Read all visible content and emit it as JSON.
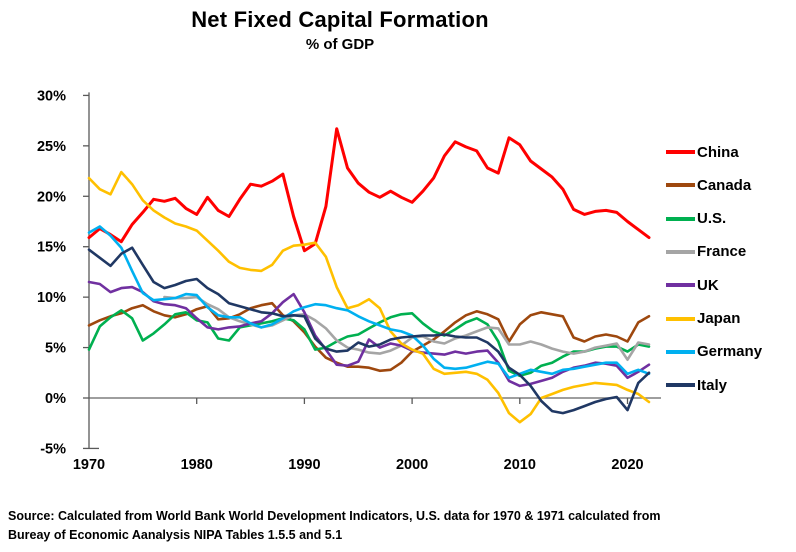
{
  "page_title": "Net Fixed Capital Formation chart",
  "chart_data": {
    "type": "line",
    "title": "Net Fixed Capital Formation",
    "subtitle": "% of GDP",
    "xlabel": "",
    "ylabel": "",
    "x_range": [
      1970,
      2022
    ],
    "x_tick_labels": [
      "1970",
      "1980",
      "1990",
      "2000",
      "2010",
      "2020"
    ],
    "x_ticks": [
      1970,
      1980,
      1990,
      2000,
      2010,
      2020
    ],
    "ylim": [
      -5,
      30
    ],
    "y_ticks": [
      30,
      25,
      20,
      15,
      10,
      5,
      0,
      -5
    ],
    "y_tick_suffix": "%",
    "grid": "none",
    "zero_line": true,
    "legend_position": "right",
    "series": [
      {
        "name": "China",
        "color": "#FF0000",
        "start_year": 1970,
        "values": [
          15.9,
          16.8,
          16.2,
          15.5,
          17.2,
          18.4,
          19.7,
          19.5,
          19.8,
          18.8,
          18.2,
          19.9,
          18.6,
          18.0,
          19.7,
          21.2,
          21.0,
          21.5,
          22.2,
          18.0,
          14.6,
          15.3,
          19.0,
          26.7,
          22.8,
          21.3,
          20.4,
          19.9,
          20.5,
          19.9,
          19.4,
          20.5,
          21.8,
          24.0,
          25.4,
          24.9,
          24.5,
          22.8,
          22.3,
          25.8,
          25.1,
          23.5,
          22.7,
          21.9,
          20.7,
          18.7,
          18.2,
          18.5,
          18.6,
          18.4,
          17.5,
          16.7,
          15.9
        ]
      },
      {
        "name": "Canada",
        "color": "#9E480E",
        "start_year": 1970,
        "values": [
          7.2,
          7.7,
          8.1,
          8.4,
          8.9,
          9.2,
          8.6,
          8.2,
          8.0,
          8.3,
          8.8,
          9.1,
          7.8,
          7.9,
          8.3,
          8.9,
          9.2,
          9.4,
          8.2,
          7.6,
          6.5,
          5.1,
          4.0,
          3.5,
          3.1,
          3.1,
          3.0,
          2.7,
          2.8,
          3.5,
          4.6,
          5.2,
          5.8,
          6.6,
          7.5,
          8.2,
          8.6,
          8.3,
          7.8,
          5.6,
          7.3,
          8.2,
          8.5,
          8.3,
          8.1,
          6.0,
          5.6,
          6.1,
          6.3,
          6.1,
          5.6,
          7.5,
          8.1
        ]
      },
      {
        "name": "U.S.",
        "color": "#00B050",
        "start_year": 1970,
        "values": [
          4.8,
          7.1,
          8.0,
          8.7,
          7.9,
          5.7,
          6.4,
          7.3,
          8.3,
          8.5,
          7.7,
          7.5,
          5.9,
          5.7,
          7.0,
          7.2,
          7.4,
          7.6,
          7.9,
          7.7,
          6.8,
          4.8,
          5.0,
          5.6,
          6.1,
          6.3,
          6.9,
          7.5,
          8.0,
          8.3,
          8.4,
          7.4,
          6.6,
          6.2,
          6.8,
          7.5,
          7.9,
          7.3,
          5.6,
          2.7,
          2.2,
          2.5,
          3.2,
          3.5,
          4.1,
          4.6,
          4.6,
          4.9,
          5.1,
          5.1,
          4.6,
          5.3,
          5.1
        ]
      },
      {
        "name": "France",
        "color": "#A5A5A5",
        "start_year": 1977,
        "values": [
          10.0,
          9.9,
          9.9,
          10.0,
          9.3,
          8.8,
          8.0,
          7.6,
          7.3,
          7.0,
          7.2,
          7.7,
          8.2,
          8.3,
          7.7,
          6.9,
          5.7,
          5.0,
          4.8,
          4.5,
          4.4,
          4.7,
          5.2,
          6.0,
          6.1,
          5.6,
          5.4,
          5.9,
          6.2,
          6.6,
          7.0,
          6.9,
          5.3,
          5.3,
          5.6,
          5.3,
          4.9,
          4.6,
          4.4,
          4.6,
          5.0,
          5.2,
          5.4,
          3.8,
          5.5,
          5.3
        ]
      },
      {
        "name": "UK",
        "color": "#7030A0",
        "start_year": 1970,
        "values": [
          11.5,
          11.3,
          10.5,
          10.9,
          11.0,
          10.5,
          9.6,
          9.3,
          9.2,
          8.9,
          7.9,
          7.0,
          6.8,
          7.0,
          7.1,
          7.4,
          7.6,
          8.4,
          9.5,
          10.3,
          8.5,
          6.2,
          4.8,
          3.3,
          3.2,
          3.6,
          5.8,
          5.0,
          5.4,
          5.2,
          4.7,
          4.5,
          4.4,
          4.3,
          4.6,
          4.4,
          4.6,
          4.7,
          3.5,
          1.7,
          1.2,
          1.4,
          1.7,
          2.0,
          2.6,
          3.0,
          3.2,
          3.5,
          3.4,
          3.2,
          2.0,
          2.6,
          3.3
        ]
      },
      {
        "name": "Japan",
        "color": "#FFC000",
        "start_year": 1970,
        "values": [
          21.8,
          20.7,
          20.2,
          22.4,
          21.2,
          19.6,
          18.6,
          17.9,
          17.3,
          17.0,
          16.6,
          15.6,
          14.6,
          13.5,
          12.9,
          12.7,
          12.6,
          13.2,
          14.6,
          15.1,
          15.2,
          15.4,
          14.0,
          11.0,
          8.9,
          9.2,
          9.8,
          8.9,
          6.6,
          5.4,
          4.8,
          4.4,
          2.9,
          2.4,
          2.5,
          2.6,
          2.4,
          1.8,
          0.5,
          -1.5,
          -2.4,
          -1.6,
          0.0,
          0.4,
          0.8,
          1.1,
          1.3,
          1.5,
          1.4,
          1.3,
          0.8,
          0.4,
          -0.4
        ]
      },
      {
        "name": "Germany",
        "color": "#00B0F0",
        "start_year": 1970,
        "values": [
          16.4,
          17.0,
          16.1,
          14.9,
          12.6,
          10.4,
          9.7,
          9.8,
          9.9,
          10.3,
          10.2,
          9.0,
          8.2,
          8.0,
          8.0,
          7.4,
          7.0,
          7.3,
          7.9,
          8.6,
          9.0,
          9.3,
          9.2,
          8.9,
          8.7,
          8.1,
          7.6,
          7.2,
          6.8,
          6.6,
          6.2,
          5.2,
          3.9,
          3.0,
          2.9,
          3.0,
          3.3,
          3.6,
          3.4,
          2.0,
          2.4,
          2.8,
          2.6,
          2.4,
          2.8,
          2.9,
          3.1,
          3.3,
          3.5,
          3.5,
          2.4,
          2.8,
          2.4
        ]
      },
      {
        "name": "Italy",
        "color": "#203864",
        "start_year": 1970,
        "values": [
          14.7,
          13.9,
          13.1,
          14.3,
          14.9,
          13.2,
          11.5,
          10.9,
          11.2,
          11.6,
          11.8,
          10.9,
          10.3,
          9.4,
          9.1,
          8.8,
          8.5,
          8.4,
          8.1,
          8.2,
          8.1,
          5.9,
          4.9,
          4.6,
          4.7,
          5.5,
          5.1,
          5.3,
          5.8,
          6.0,
          6.1,
          6.2,
          6.2,
          6.3,
          6.1,
          6.0,
          6.0,
          5.5,
          4.6,
          3.0,
          2.3,
          1.2,
          -0.3,
          -1.3,
          -1.5,
          -1.2,
          -0.8,
          -0.4,
          -0.1,
          0.1,
          -1.2,
          1.5,
          2.5
        ]
      }
    ]
  },
  "source_note": {
    "line1": "Source:  Calculated from World Bank World Development Indicators, U.S. data for 1970 & 1971 calculated from",
    "line2": "Bureay of Economic Aanalysis NIPA Tables 1.5.5 and 5.1"
  },
  "colors": {
    "background": "#FFFFFF",
    "axis": "#595959",
    "zero_line": "#7F7F7F",
    "text": "#000000"
  }
}
